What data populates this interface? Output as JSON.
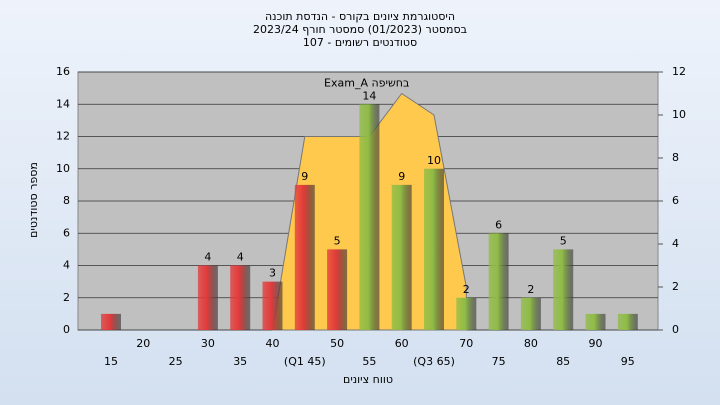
{
  "chart_data": {
    "type": "bar",
    "title": [
      "היסטוגרמת ציונים בקורס - הנדסת תוכנה",
      "בסמסטר  (01/2023)  סמסטר חורף 2023/24",
      "סטודנטים רשומים - 107"
    ],
    "x_label": "טווח ציונים",
    "y_label": "מספר סטודנטים",
    "categories": [
      "15",
      "20",
      "25",
      "30",
      "35",
      "40",
      "(Q1 45)",
      "50",
      "55",
      "60",
      "(Q3 65)",
      "70",
      "75",
      "80",
      "85",
      "90",
      "95"
    ],
    "values": [
      1,
      0,
      0,
      4,
      4,
      3,
      9,
      5,
      14,
      9,
      10,
      2,
      6,
      2,
      5,
      1,
      1
    ],
    "colors": [
      "#e23a3a",
      "#e23a3a",
      "#e23a3a",
      "#e23a3a",
      "#e23a3a",
      "#e23a3a",
      "#e23a3a",
      "#e23a3a",
      "#8fbc45",
      "#8fbc45",
      "#8fbc45",
      "#8fbc45",
      "#8fbc45",
      "#8fbc45",
      "#8fbc45",
      "#8fbc45",
      "#8fbc45"
    ],
    "ylim": [
      0,
      16
    ],
    "yticks": [
      0,
      2,
      4,
      6,
      8,
      10,
      12,
      14,
      16
    ],
    "y2lim": [
      0,
      12
    ],
    "y2ticks": [
      0,
      2,
      4,
      6,
      8,
      10,
      12
    ],
    "series": [
      {
        "name": "Exam_A בחשיפה",
        "color": "#ffc94d",
        "axis": "y2",
        "values": [
          null,
          null,
          null,
          null,
          null,
          0,
          9,
          9,
          9,
          11,
          10,
          2,
          null,
          null,
          null,
          null,
          null
        ]
      }
    ],
    "grid": true
  }
}
